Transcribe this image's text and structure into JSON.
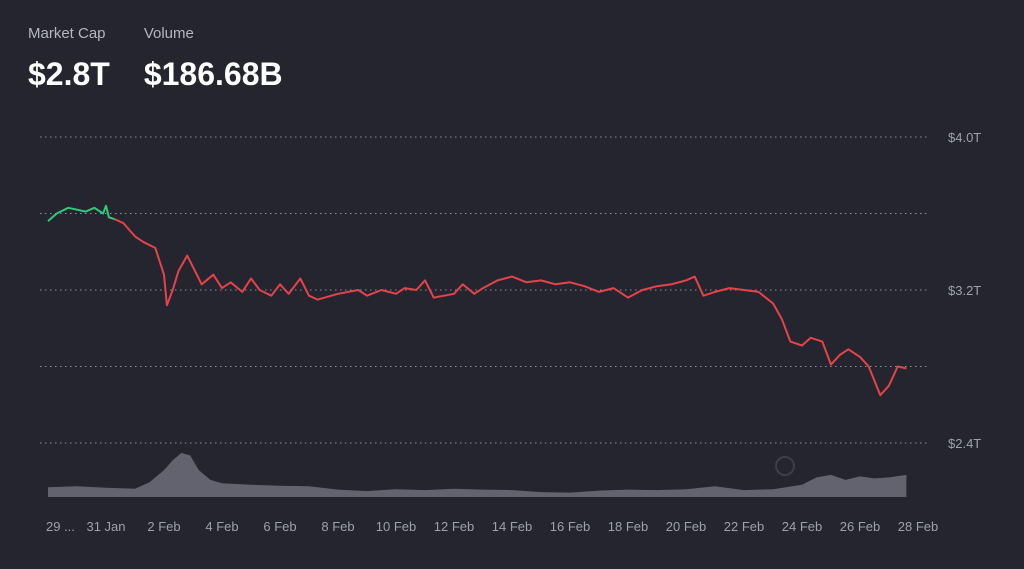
{
  "stats": [
    {
      "label": "Market Cap",
      "value": "$2.8T"
    },
    {
      "label": "Volume",
      "value": "$186.68B"
    }
  ],
  "colors": {
    "background": "#24252e",
    "up": "#34c77b",
    "down": "#e5434b",
    "volume": "#6d6f7a",
    "grid": "#9a9ca6"
  },
  "chart_data": {
    "type": "line",
    "title": "",
    "xlabel": "",
    "ylabel": "",
    "y_tick_labels": [
      "$4.0T",
      "$3.2T",
      "$2.4T"
    ],
    "y_ticks": [
      4.0,
      3.6,
      3.2,
      2.8,
      2.4
    ],
    "ylim": [
      2.4,
      4.0
    ],
    "x_tick_labels": [
      "29 ...",
      "31 Jan",
      "2 Feb",
      "4 Feb",
      "6 Feb",
      "8 Feb",
      "10 Feb",
      "12 Feb",
      "14 Feb",
      "16 Feb",
      "18 Feb",
      "20 Feb",
      "22 Feb",
      "24 Feb",
      "26 Feb",
      "28 Feb"
    ],
    "x_tick_days": [
      0,
      2,
      4,
      6,
      8,
      10,
      12,
      14,
      16,
      18,
      20,
      22,
      24,
      26,
      28,
      30
    ],
    "xlim": [
      0,
      30
    ],
    "grid": true,
    "series": [
      {
        "values_trillion_usd": [
          [
            0.0,
            3.56
          ],
          [
            0.3,
            3.6
          ],
          [
            0.7,
            3.63
          ],
          [
            1.0,
            3.62
          ],
          [
            1.3,
            3.61
          ],
          [
            1.6,
            3.63
          ],
          [
            1.9,
            3.6
          ],
          [
            2.0,
            3.64
          ],
          [
            2.1,
            3.58
          ],
          [
            2.3,
            3.57
          ],
          [
            2.6,
            3.55
          ],
          [
            3.0,
            3.48
          ],
          [
            3.3,
            3.45
          ],
          [
            3.7,
            3.42
          ],
          [
            4.0,
            3.28
          ],
          [
            4.1,
            3.12
          ],
          [
            4.3,
            3.2
          ],
          [
            4.5,
            3.3
          ],
          [
            4.8,
            3.38
          ],
          [
            5.0,
            3.32
          ],
          [
            5.3,
            3.23
          ],
          [
            5.7,
            3.28
          ],
          [
            6.0,
            3.21
          ],
          [
            6.3,
            3.24
          ],
          [
            6.7,
            3.19
          ],
          [
            7.0,
            3.26
          ],
          [
            7.3,
            3.2
          ],
          [
            7.7,
            3.17
          ],
          [
            8.0,
            3.23
          ],
          [
            8.3,
            3.18
          ],
          [
            8.7,
            3.26
          ],
          [
            9.0,
            3.17
          ],
          [
            9.3,
            3.15
          ],
          [
            10.0,
            3.18
          ],
          [
            10.7,
            3.2
          ],
          [
            11.0,
            3.17
          ],
          [
            11.5,
            3.2
          ],
          [
            12.0,
            3.18
          ],
          [
            12.3,
            3.21
          ],
          [
            12.7,
            3.2
          ],
          [
            13.0,
            3.25
          ],
          [
            13.3,
            3.16
          ],
          [
            14.0,
            3.18
          ],
          [
            14.3,
            3.23
          ],
          [
            14.7,
            3.18
          ],
          [
            15.0,
            3.21
          ],
          [
            15.5,
            3.25
          ],
          [
            16.0,
            3.27
          ],
          [
            16.5,
            3.24
          ],
          [
            17.0,
            3.25
          ],
          [
            17.5,
            3.23
          ],
          [
            18.0,
            3.24
          ],
          [
            18.5,
            3.22
          ],
          [
            19.0,
            3.19
          ],
          [
            19.5,
            3.21
          ],
          [
            20.0,
            3.16
          ],
          [
            20.5,
            3.2
          ],
          [
            21.0,
            3.22
          ],
          [
            21.5,
            3.23
          ],
          [
            22.0,
            3.25
          ],
          [
            22.3,
            3.27
          ],
          [
            22.6,
            3.17
          ],
          [
            23.0,
            3.19
          ],
          [
            23.5,
            3.21
          ],
          [
            24.0,
            3.2
          ],
          [
            24.5,
            3.19
          ],
          [
            25.0,
            3.13
          ],
          [
            25.3,
            3.05
          ],
          [
            25.6,
            2.93
          ],
          [
            26.0,
            2.91
          ],
          [
            26.3,
            2.95
          ],
          [
            26.7,
            2.93
          ],
          [
            27.0,
            2.81
          ],
          [
            27.3,
            2.86
          ],
          [
            27.6,
            2.89
          ],
          [
            28.0,
            2.85
          ],
          [
            28.3,
            2.8
          ],
          [
            28.7,
            2.65
          ],
          [
            29.0,
            2.7
          ],
          [
            29.3,
            2.8
          ],
          [
            29.6,
            2.79
          ]
        ],
        "up_until_day": 2.3
      },
      {
        "values_relative": [
          [
            0.0,
            0.2
          ],
          [
            1.0,
            0.22
          ],
          [
            2.0,
            0.19
          ],
          [
            3.0,
            0.17
          ],
          [
            3.5,
            0.3
          ],
          [
            4.0,
            0.55
          ],
          [
            4.3,
            0.75
          ],
          [
            4.6,
            0.9
          ],
          [
            4.9,
            0.85
          ],
          [
            5.2,
            0.55
          ],
          [
            5.6,
            0.35
          ],
          [
            6.0,
            0.28
          ],
          [
            7.0,
            0.25
          ],
          [
            8.0,
            0.23
          ],
          [
            9.0,
            0.22
          ],
          [
            10.0,
            0.15
          ],
          [
            11.0,
            0.12
          ],
          [
            12.0,
            0.16
          ],
          [
            13.0,
            0.14
          ],
          [
            14.0,
            0.17
          ],
          [
            15.0,
            0.15
          ],
          [
            16.0,
            0.14
          ],
          [
            17.0,
            0.1
          ],
          [
            18.0,
            0.09
          ],
          [
            19.0,
            0.13
          ],
          [
            20.0,
            0.15
          ],
          [
            21.0,
            0.14
          ],
          [
            22.0,
            0.16
          ],
          [
            23.0,
            0.22
          ],
          [
            24.0,
            0.14
          ],
          [
            25.0,
            0.16
          ],
          [
            26.0,
            0.25
          ],
          [
            26.5,
            0.4
          ],
          [
            27.0,
            0.45
          ],
          [
            27.5,
            0.35
          ],
          [
            28.0,
            0.42
          ],
          [
            28.5,
            0.38
          ],
          [
            29.0,
            0.4
          ],
          [
            29.6,
            0.45
          ]
        ]
      }
    ]
  }
}
